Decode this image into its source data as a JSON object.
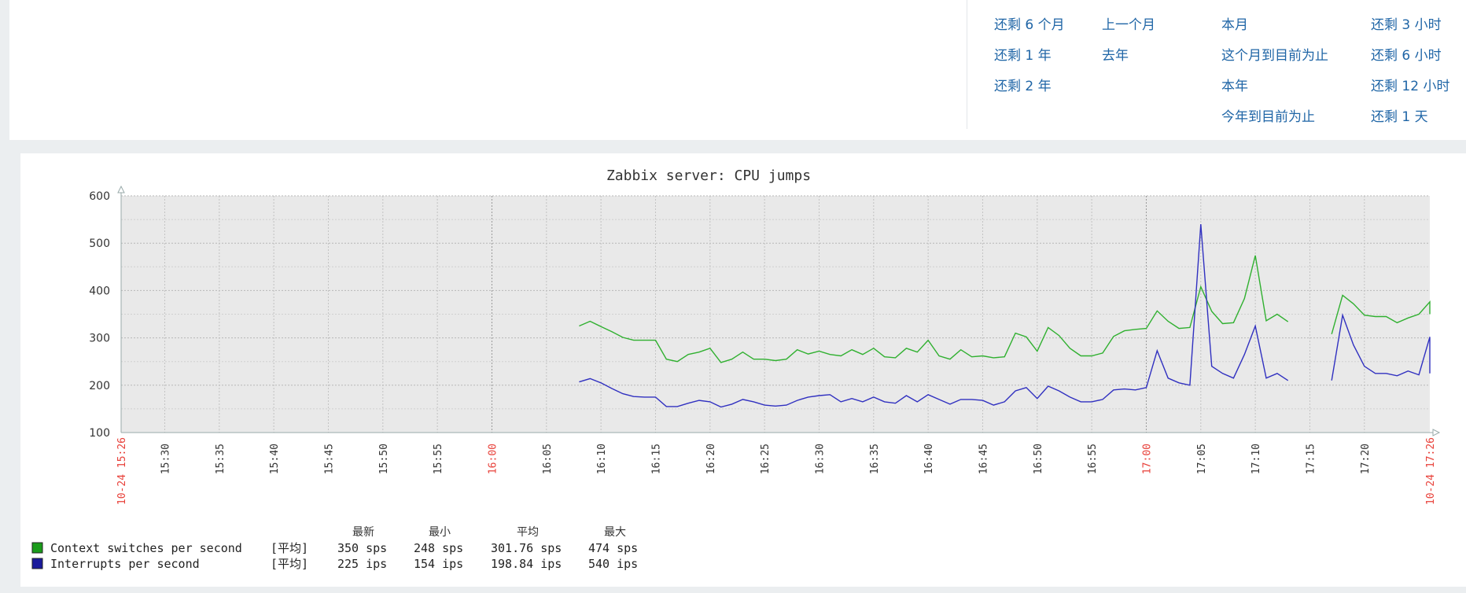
{
  "period_links": [
    {
      "label": "还剩 6 个月"
    },
    {
      "label": "还剩 1 年"
    },
    {
      "label": "还剩 2 年"
    },
    {
      "label": "上一个月"
    },
    {
      "label": "去年"
    },
    {
      "label": "本月"
    },
    {
      "label": "这个月到目前为止"
    },
    {
      "label": "本年"
    },
    {
      "label": "今年到目前为止"
    },
    {
      "label": "还剩 3 小时"
    },
    {
      "label": "还剩 6 小时"
    },
    {
      "label": "还剩 12 小时"
    },
    {
      "label": "还剩 1 天"
    }
  ],
  "graph": {
    "title": "Zabbix server: CPU jumps",
    "legend": {
      "headers": {
        "last": "最新",
        "min": "最小",
        "avg": "平均",
        "max": "最大"
      },
      "items": [
        {
          "name": "Context switches per second",
          "func": "[平均]",
          "last": "350 sps",
          "min": "248 sps",
          "avg": "301.76 sps",
          "max": "474 sps",
          "color": "#1a9c1a"
        },
        {
          "name": "Interrupts per second",
          "func": "[平均]",
          "last": "225 ips",
          "min": "154 ips",
          "avg": "198.84 ips",
          "max": "540 ips",
          "color": "#1a1a9c"
        }
      ]
    }
  },
  "chart_data": {
    "type": "line",
    "title": "Zabbix server: CPU jumps",
    "ylim": [
      100,
      600
    ],
    "y_ticks": [
      "100",
      "200",
      "300",
      "400",
      "500",
      "600"
    ],
    "x_start_label": "10-24 15:26",
    "x_end_label": "10-24 17:26",
    "x_range": [
      "15:26",
      "17:26"
    ],
    "x_ticks": [
      "15:30",
      "15:35",
      "15:40",
      "15:45",
      "15:50",
      "15:55",
      "16:00",
      "16:05",
      "16:10",
      "16:15",
      "16:20",
      "16:25",
      "16:30",
      "16:35",
      "16:40",
      "16:45",
      "16:50",
      "16:55",
      "17:00",
      "17:05",
      "17:10",
      "17:15",
      "17:20"
    ],
    "highlight_ticks": [
      "16:00",
      "17:00"
    ],
    "highlight_color": "#e8413a",
    "grid": true,
    "series": [
      {
        "name": "Context switches per second",
        "color": "#1a9c1a",
        "segments": [
          [
            [
              "16:08",
              325
            ],
            [
              "16:09",
              335
            ],
            [
              "16:10",
              324
            ],
            [
              "16:11",
              313
            ],
            [
              "16:12",
              301
            ],
            [
              "16:13",
              295
            ],
            [
              "16:14",
              295
            ],
            [
              "16:15",
              295
            ],
            [
              "16:16",
              255
            ],
            [
              "16:17",
              250
            ],
            [
              "16:18",
              265
            ],
            [
              "16:19",
              270
            ],
            [
              "16:20",
              278
            ],
            [
              "16:21",
              248
            ],
            [
              "16:22",
              255
            ],
            [
              "16:23",
              270
            ],
            [
              "16:24",
              255
            ],
            [
              "16:25",
              255
            ],
            [
              "16:26",
              252
            ],
            [
              "16:27",
              255
            ],
            [
              "16:28",
              275
            ],
            [
              "16:29",
              266
            ],
            [
              "16:30",
              272
            ],
            [
              "16:31",
              265
            ],
            [
              "16:32",
              262
            ],
            [
              "16:33",
              275
            ],
            [
              "16:34",
              265
            ],
            [
              "16:35",
              278
            ],
            [
              "16:36",
              260
            ],
            [
              "16:37",
              258
            ],
            [
              "16:38",
              278
            ],
            [
              "16:39",
              270
            ],
            [
              "16:40",
              295
            ],
            [
              "16:41",
              262
            ],
            [
              "16:42",
              255
            ],
            [
              "16:43",
              275
            ],
            [
              "16:44",
              260
            ],
            [
              "16:45",
              262
            ],
            [
              "16:46",
              258
            ],
            [
              "16:47",
              260
            ],
            [
              "16:48",
              310
            ],
            [
              "16:49",
              302
            ],
            [
              "16:50",
              272
            ],
            [
              "16:51",
              322
            ],
            [
              "16:52",
              305
            ],
            [
              "16:53",
              278
            ],
            [
              "16:54",
              262
            ],
            [
              "16:55",
              262
            ],
            [
              "16:56",
              268
            ],
            [
              "16:57",
              303
            ],
            [
              "16:58",
              315
            ],
            [
              "16:59",
              318
            ],
            [
              "17:00",
              320
            ],
            [
              "17:01",
              357
            ],
            [
              "17:02",
              335
            ],
            [
              "17:03",
              320
            ],
            [
              "17:04",
              322
            ],
            [
              "17:05",
              408
            ],
            [
              "17:06",
              356
            ],
            [
              "17:07",
              330
            ],
            [
              "17:08",
              332
            ],
            [
              "17:09",
              383
            ],
            [
              "17:10",
              474
            ],
            [
              "17:11",
              336
            ],
            [
              "17:12",
              350
            ],
            [
              "17:13",
              334
            ]
          ],
          [
            [
              "17:17",
              308
            ],
            [
              "17:18",
              390
            ],
            [
              "17:19",
              372
            ],
            [
              "17:20",
              348
            ],
            [
              "17:21",
              345
            ],
            [
              "17:22",
              345
            ],
            [
              "17:23",
              332
            ],
            [
              "17:24",
              342
            ],
            [
              "17:25",
              350
            ],
            [
              "17:26",
              376
            ],
            [
              "17:27",
              350
            ],
            [
              "17:27.5",
              350
            ]
          ]
        ]
      },
      {
        "name": "Interrupts per second",
        "color": "#1a1a9c",
        "segments": [
          [
            [
              "16:08",
              207
            ],
            [
              "16:09",
              214
            ],
            [
              "16:10",
              205
            ],
            [
              "16:11",
              193
            ],
            [
              "16:12",
              182
            ],
            [
              "16:13",
              176
            ],
            [
              "16:14",
              175
            ],
            [
              "16:15",
              175
            ],
            [
              "16:16",
              155
            ],
            [
              "16:17",
              155
            ],
            [
              "16:18",
              162
            ],
            [
              "16:19",
              168
            ],
            [
              "16:20",
              165
            ],
            [
              "16:21",
              154
            ],
            [
              "16:22",
              160
            ],
            [
              "16:23",
              170
            ],
            [
              "16:24",
              165
            ],
            [
              "16:25",
              158
            ],
            [
              "16:26",
              156
            ],
            [
              "16:27",
              158
            ],
            [
              "16:28",
              168
            ],
            [
              "16:29",
              175
            ],
            [
              "16:30",
              178
            ],
            [
              "16:31",
              180
            ],
            [
              "16:32",
              165
            ],
            [
              "16:33",
              172
            ],
            [
              "16:34",
              165
            ],
            [
              "16:35",
              175
            ],
            [
              "16:36",
              165
            ],
            [
              "16:37",
              162
            ],
            [
              "16:38",
              178
            ],
            [
              "16:39",
              165
            ],
            [
              "16:40",
              180
            ],
            [
              "16:41",
              170
            ],
            [
              "16:42",
              160
            ],
            [
              "16:43",
              170
            ],
            [
              "16:44",
              170
            ],
            [
              "16:45",
              168
            ],
            [
              "16:46",
              158
            ],
            [
              "16:47",
              165
            ],
            [
              "16:48",
              188
            ],
            [
              "16:49",
              195
            ],
            [
              "16:50",
              172
            ],
            [
              "16:51",
              198
            ],
            [
              "16:52",
              188
            ],
            [
              "16:53",
              175
            ],
            [
              "16:54",
              165
            ],
            [
              "16:55",
              165
            ],
            [
              "16:56",
              170
            ],
            [
              "16:57",
              190
            ],
            [
              "16:58",
              192
            ],
            [
              "16:59",
              190
            ],
            [
              "17:00",
              195
            ],
            [
              "17:01",
              273
            ],
            [
              "17:02",
              215
            ],
            [
              "17:03",
              205
            ],
            [
              "17:04",
              200
            ],
            [
              "17:05",
              540
            ],
            [
              "17:06",
              240
            ],
            [
              "17:07",
              225
            ],
            [
              "17:08",
              215
            ],
            [
              "17:09",
              265
            ],
            [
              "17:10",
              325
            ],
            [
              "17:11",
              215
            ],
            [
              "17:12",
              225
            ],
            [
              "17:13",
              210
            ]
          ],
          [
            [
              "17:17",
              210
            ],
            [
              "17:18",
              348
            ],
            [
              "17:19",
              285
            ],
            [
              "17:20",
              240
            ],
            [
              "17:21",
              225
            ],
            [
              "17:22",
              225
            ],
            [
              "17:23",
              220
            ],
            [
              "17:24",
              230
            ],
            [
              "17:25",
              222
            ],
            [
              "17:26",
              302
            ],
            [
              "17:27",
              225
            ],
            [
              "17:27.5",
              225
            ]
          ]
        ]
      }
    ]
  }
}
